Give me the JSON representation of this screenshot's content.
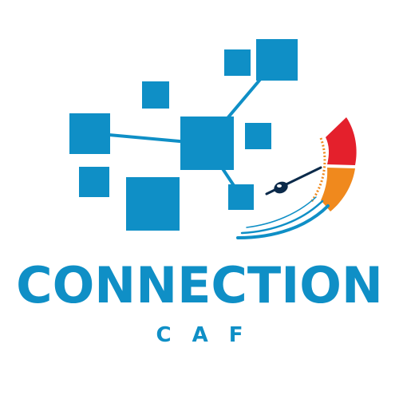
{
  "logo": {
    "name": "CONNECTION",
    "subtitle": "CAF",
    "colors": {
      "primary_blue": "#0f8fc6",
      "gauge_red": "#e4202c",
      "gauge_orange": "#f0891d",
      "gauge_blue": "#0f8fc6",
      "needle": "#0b2a4a"
    },
    "icons": [
      "network-nodes-icon",
      "speedometer-gauge-icon"
    ]
  }
}
